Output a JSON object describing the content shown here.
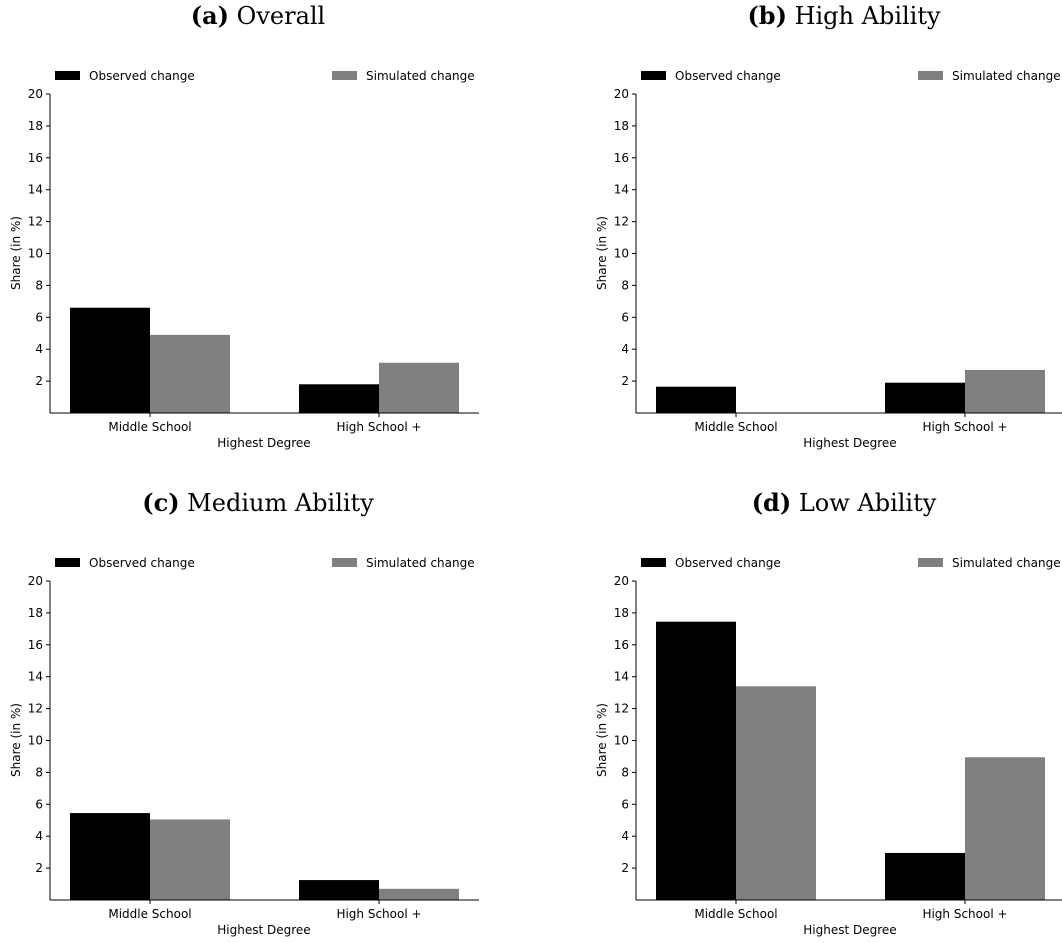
{
  "legend": {
    "observed": "Observed change",
    "simulated": "Simulated change"
  },
  "colors": {
    "observed": "#000000",
    "simulated": "#808080"
  },
  "chart_data": [
    {
      "type": "bar",
      "label": "(a)",
      "title": "Overall",
      "categories": [
        "Middle School",
        "High School +"
      ],
      "series": [
        {
          "name": "Observed change",
          "values": [
            6.6,
            1.8
          ]
        },
        {
          "name": "Simulated change",
          "values": [
            4.9,
            3.15
          ]
        }
      ],
      "xlabel": "Highest Degree",
      "ylabel": "Share (in %)",
      "ylim": [
        0,
        20
      ],
      "yticks": [
        "2",
        "4",
        "6",
        "8",
        "10",
        "12",
        "14",
        "16",
        "18",
        "20"
      ],
      "legend_position": "top"
    },
    {
      "type": "bar",
      "label": "(b)",
      "title": "High Ability",
      "categories": [
        "Middle School",
        "High School +"
      ],
      "series": [
        {
          "name": "Observed change",
          "values": [
            1.65,
            1.9
          ]
        },
        {
          "name": "Simulated change",
          "values": [
            0,
            2.7
          ]
        }
      ],
      "xlabel": "Highest Degree",
      "ylabel": "Share (in %)",
      "ylim": [
        0,
        20
      ],
      "yticks": [
        "2",
        "4",
        "6",
        "8",
        "10",
        "12",
        "14",
        "16",
        "18",
        "20"
      ],
      "legend_position": "top"
    },
    {
      "type": "bar",
      "label": "(c)",
      "title": "Medium Ability",
      "categories": [
        "Middle School",
        "High School +"
      ],
      "series": [
        {
          "name": "Observed change",
          "values": [
            5.45,
            1.25
          ]
        },
        {
          "name": "Simulated change",
          "values": [
            5.05,
            0.7
          ]
        }
      ],
      "xlabel": "Highest Degree",
      "ylabel": "Share (in %)",
      "ylim": [
        0,
        20
      ],
      "yticks": [
        "2",
        "4",
        "6",
        "8",
        "10",
        "12",
        "14",
        "16",
        "18",
        "20"
      ],
      "legend_position": "top"
    },
    {
      "type": "bar",
      "label": "(d)",
      "title": "Low Ability",
      "categories": [
        "Middle School",
        "High School +"
      ],
      "series": [
        {
          "name": "Observed change",
          "values": [
            17.45,
            2.95
          ]
        },
        {
          "name": "Simulated change",
          "values": [
            13.4,
            8.95
          ]
        }
      ],
      "xlabel": "Highest Degree",
      "ylabel": "Share (in %)",
      "ylim": [
        0,
        20
      ],
      "yticks": [
        "2",
        "4",
        "6",
        "8",
        "10",
        "12",
        "14",
        "16",
        "18",
        "20"
      ],
      "legend_position": "top"
    }
  ]
}
